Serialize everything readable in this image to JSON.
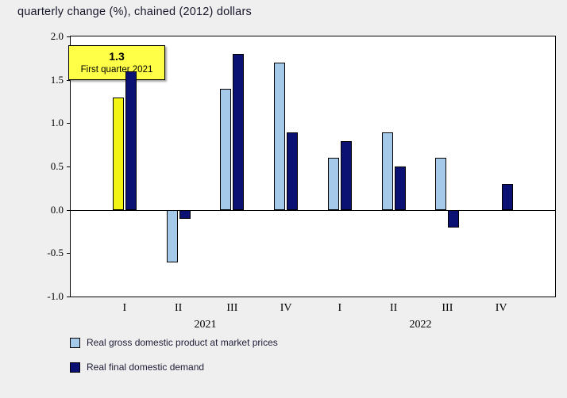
{
  "title": "quarterly change (%), chained (2012) dollars",
  "tooltip": {
    "value": "1.3",
    "label": "First quarter 2021"
  },
  "colors": {
    "background": "#EFEFEF",
    "plot_background": "#FFFFFF",
    "highlight_bar": "#F2F414",
    "tooltip_background": "#FFFF47",
    "gdp_series": "#A5C9E9",
    "demand_series": "#0A1172"
  },
  "chart_data": {
    "type": "bar",
    "title": "quarterly change (%), chained (2012) dollars",
    "categories": [
      "I",
      "II",
      "III",
      "IV",
      "I",
      "II",
      "III",
      "IV"
    ],
    "years": [
      {
        "text": "2021",
        "span": [
          0,
          3
        ]
      },
      {
        "text": "2022",
        "span": [
          4,
          7
        ]
      }
    ],
    "series": [
      {
        "name": "Real gross domestic product at market prices",
        "color": "#A5C9E9",
        "values": [
          1.3,
          -0.6,
          1.4,
          1.7,
          0.6,
          0.9,
          0.6,
          0.0
        ]
      },
      {
        "name": "Real final domestic demand",
        "color": "#0A1172",
        "values": [
          1.6,
          -0.1,
          1.8,
          0.9,
          0.8,
          0.5,
          -0.2,
          0.3
        ]
      }
    ],
    "highlight": {
      "series": 0,
      "index": 0,
      "color": "#F2F414"
    },
    "xlabel": "",
    "ylabel": "",
    "ylim": [
      -1.0,
      2.0
    ],
    "yticks": [
      2.0,
      1.5,
      1.0,
      0.5,
      0.0,
      -0.5,
      -1.0
    ],
    "grid": false,
    "legend_position": "bottom-left"
  }
}
